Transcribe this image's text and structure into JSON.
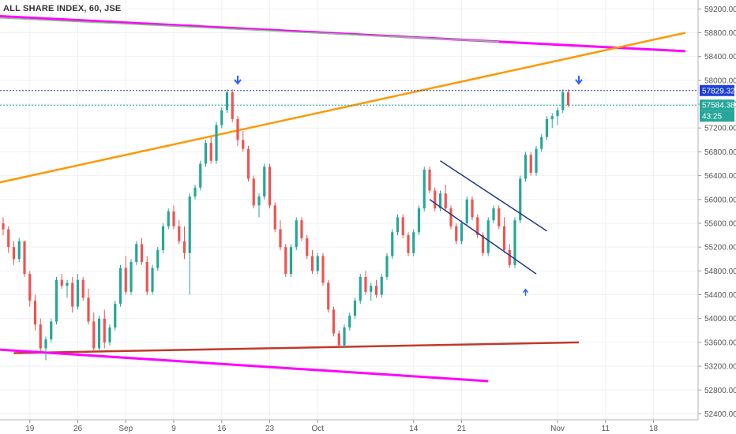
{
  "chart_data": {
    "type": "candlestick",
    "title": "ALL SHARE INDEX, 60, JSE",
    "colors": {
      "up": "#26a69a",
      "down": "#ef5350",
      "grid": "#eef0f3",
      "magenta_line": "#ff00ff",
      "orange_line": "#ff9800",
      "green_line": "#81c784",
      "red_line": "#c0392b",
      "channel_line": "#1e3a8a",
      "arrow": "#2962ff",
      "highlight_line": "#1e40af",
      "last_line": "#26a69a"
    },
    "y_axis": {
      "range": [
        52300,
        59350
      ],
      "ticks": [
        "59200.00",
        "58800.00",
        "58400.00",
        "58000.00",
        "57600.00",
        "57200.00",
        "56800.00",
        "56400.00",
        "56000.00",
        "55600.00",
        "55200.00",
        "54800.00",
        "54400.00",
        "54000.00",
        "53600.00",
        "53200.00",
        "52800.00",
        "52400.00"
      ]
    },
    "x_axis": {
      "ticks": [
        {
          "label": "19",
          "index": 5
        },
        {
          "label": "26",
          "index": 14
        },
        {
          "label": "Sep",
          "index": 23
        },
        {
          "label": "9",
          "index": 32
        },
        {
          "label": "16",
          "index": 41
        },
        {
          "label": "23",
          "index": 50
        },
        {
          "label": "Oct",
          "index": 59
        },
        {
          "label": "14",
          "index": 77
        },
        {
          "label": "21",
          "index": 86
        },
        {
          "label": "Nov",
          "index": 104
        },
        {
          "label": "11",
          "index": 113
        },
        {
          "label": "18",
          "index": 122
        }
      ],
      "bar_count": 128
    },
    "price_labels": {
      "highlight": "57829.32",
      "last": "57584.38",
      "countdown": "43:25"
    },
    "lines": [
      {
        "name": "magenta-top",
        "color": "magenta_line",
        "width": 3,
        "p1": [
          -1,
          59080
        ],
        "p2": [
          128,
          58490
        ]
      },
      {
        "name": "green-top",
        "color": "green_line",
        "width": 1.5,
        "p1": [
          -1,
          59050
        ],
        "p2": [
          93,
          58650
        ]
      },
      {
        "name": "orange-trend",
        "color": "orange_line",
        "width": 2.5,
        "p1": [
          -1,
          56280
        ],
        "p2": [
          128,
          58800
        ]
      },
      {
        "name": "red-support",
        "color": "red_line",
        "width": 2.5,
        "p1": [
          2,
          53420
        ],
        "p2": [
          108,
          53600
        ]
      },
      {
        "name": "magenta-bottom",
        "color": "magenta_line",
        "width": 3,
        "p1": [
          -1,
          53480
        ],
        "p2": [
          91,
          52950
        ]
      },
      {
        "name": "channel-upper",
        "color": "channel_line",
        "width": 1.5,
        "p1": [
          82,
          56650
        ],
        "p2": [
          102,
          55470
        ]
      },
      {
        "name": "channel-lower",
        "color": "channel_line",
        "width": 1.5,
        "p1": [
          80,
          56000
        ],
        "p2": [
          100,
          54750
        ]
      }
    ],
    "arrows": [
      {
        "name": "arrow-down-sep16",
        "index": 44,
        "value": 58000,
        "dir": "down"
      },
      {
        "name": "arrow-down-nov",
        "index": 108,
        "value": 58000,
        "dir": "down"
      },
      {
        "name": "arrow-up-oct",
        "index": 98,
        "value": 54450,
        "dir": "up"
      }
    ],
    "candles": [
      [
        55600,
        55700,
        55400,
        55500
      ],
      [
        55500,
        55550,
        55100,
        55200
      ],
      [
        55200,
        55300,
        54900,
        55000
      ],
      [
        55000,
        55350,
        54950,
        55300
      ],
      [
        55300,
        55250,
        54700,
        54750
      ],
      [
        54750,
        54800,
        54200,
        54300
      ],
      [
        54300,
        54400,
        53800,
        53900
      ],
      [
        53900,
        54000,
        53450,
        53500
      ],
      [
        53500,
        53700,
        53300,
        53650
      ],
      [
        53650,
        54000,
        53600,
        53950
      ],
      [
        53950,
        54700,
        53900,
        54650
      ],
      [
        54650,
        54750,
        54500,
        54550
      ],
      [
        54550,
        54650,
        54350,
        54600
      ],
      [
        54600,
        54700,
        54100,
        54200
      ],
      [
        54200,
        54750,
        54150,
        54650
      ],
      [
        54650,
        54700,
        54300,
        54350
      ],
      [
        54350,
        54500,
        53900,
        53950
      ],
      [
        53950,
        54100,
        53450,
        53500
      ],
      [
        53500,
        54050,
        53450,
        54000
      ],
      [
        54000,
        54150,
        53500,
        53600
      ],
      [
        53600,
        53900,
        53550,
        53850
      ],
      [
        53850,
        54300,
        53800,
        54250
      ],
      [
        54250,
        54900,
        54200,
        54850
      ],
      [
        54850,
        55050,
        54400,
        54450
      ],
      [
        54450,
        55000,
        54400,
        54950
      ],
      [
        54950,
        55300,
        54900,
        55250
      ],
      [
        55250,
        55350,
        54900,
        54950
      ],
      [
        54950,
        55050,
        54400,
        54450
      ],
      [
        54450,
        54900,
        54400,
        54850
      ],
      [
        54850,
        55200,
        54800,
        55150
      ],
      [
        55150,
        55600,
        55100,
        55550
      ],
      [
        55550,
        55850,
        55500,
        55800
      ],
      [
        55800,
        55900,
        55500,
        55550
      ],
      [
        55550,
        55650,
        55250,
        55300
      ],
      [
        55300,
        55550,
        55000,
        55100
      ],
      [
        55100,
        56100,
        54400,
        56050
      ],
      [
        56050,
        56250,
        56000,
        56200
      ],
      [
        56200,
        56650,
        56150,
        56600
      ],
      [
        56600,
        57000,
        56550,
        56950
      ],
      [
        56950,
        57050,
        56600,
        56650
      ],
      [
        56650,
        57300,
        56600,
        57250
      ],
      [
        57250,
        57550,
        57200,
        57500
      ],
      [
        57500,
        57850,
        57450,
        57800
      ],
      [
        57800,
        57850,
        57300,
        57350
      ],
      [
        57350,
        57400,
        56900,
        57000
      ],
      [
        57000,
        57150,
        56800,
        56850
      ],
      [
        56850,
        56900,
        56300,
        56350
      ],
      [
        56350,
        56400,
        55850,
        55900
      ],
      [
        55900,
        56100,
        55700,
        56050
      ],
      [
        56050,
        56600,
        56000,
        56550
      ],
      [
        56550,
        56600,
        55850,
        55900
      ],
      [
        55900,
        55950,
        55450,
        55500
      ],
      [
        55500,
        55650,
        55150,
        55200
      ],
      [
        55200,
        55250,
        54700,
        54750
      ],
      [
        54750,
        55250,
        54700,
        55200
      ],
      [
        55200,
        55700,
        55150,
        55650
      ],
      [
        55650,
        55700,
        55300,
        55350
      ],
      [
        55350,
        55400,
        55000,
        55050
      ],
      [
        55050,
        55150,
        54750,
        54800
      ],
      [
        54800,
        55100,
        54750,
        55050
      ],
      [
        55050,
        55100,
        54550,
        54600
      ],
      [
        54600,
        54650,
        54100,
        54150
      ],
      [
        54150,
        54200,
        53700,
        53750
      ],
      [
        53750,
        53800,
        53500,
        53550
      ],
      [
        53550,
        53900,
        53500,
        53850
      ],
      [
        53850,
        54100,
        53800,
        54050
      ],
      [
        54050,
        54350,
        54000,
        54300
      ],
      [
        54300,
        54750,
        54250,
        54700
      ],
      [
        54700,
        54800,
        54400,
        54450
      ],
      [
        54450,
        54600,
        54300,
        54550
      ],
      [
        54550,
        54650,
        54350,
        54400
      ],
      [
        54400,
        54750,
        54350,
        54700
      ],
      [
        54700,
        55100,
        54650,
        55050
      ],
      [
        55050,
        55500,
        55000,
        55450
      ],
      [
        55450,
        55750,
        55400,
        55700
      ],
      [
        55700,
        55750,
        55350,
        55400
      ],
      [
        55400,
        55450,
        55050,
        55100
      ],
      [
        55100,
        55500,
        55050,
        55450
      ],
      [
        55450,
        55900,
        55400,
        55850
      ],
      [
        55850,
        56550,
        55800,
        56500
      ],
      [
        56500,
        56550,
        56100,
        56150
      ],
      [
        56150,
        56200,
        55800,
        55850
      ],
      [
        55850,
        56150,
        55800,
        56100
      ],
      [
        56100,
        56250,
        55800,
        55850
      ],
      [
        55850,
        55900,
        55500,
        55550
      ],
      [
        55550,
        55600,
        55250,
        55300
      ],
      [
        55300,
        55650,
        55250,
        55600
      ],
      [
        55600,
        56050,
        55550,
        56000
      ],
      [
        56000,
        56050,
        55650,
        55700
      ],
      [
        55700,
        55750,
        55350,
        55400
      ],
      [
        55400,
        55450,
        55050,
        55100
      ],
      [
        55100,
        55700,
        55050,
        55650
      ],
      [
        55650,
        55900,
        55600,
        55850
      ],
      [
        55850,
        55900,
        55500,
        55550
      ],
      [
        55550,
        55700,
        55100,
        55150
      ],
      [
        55150,
        55250,
        54850,
        54900
      ],
      [
        54900,
        55700,
        54850,
        55650
      ],
      [
        55650,
        56400,
        55600,
        56350
      ],
      [
        56350,
        56800,
        56300,
        56750
      ],
      [
        56750,
        56800,
        56400,
        56450
      ],
      [
        56450,
        56900,
        56400,
        56850
      ],
      [
        56850,
        57100,
        56800,
        57050
      ],
      [
        57050,
        57400,
        57000,
        57350
      ],
      [
        57350,
        57450,
        57200,
        57400
      ],
      [
        57400,
        57550,
        57250,
        57500
      ],
      [
        57500,
        57850,
        57450,
        57800
      ],
      [
        57800,
        57850,
        57550,
        57584
      ]
    ]
  }
}
